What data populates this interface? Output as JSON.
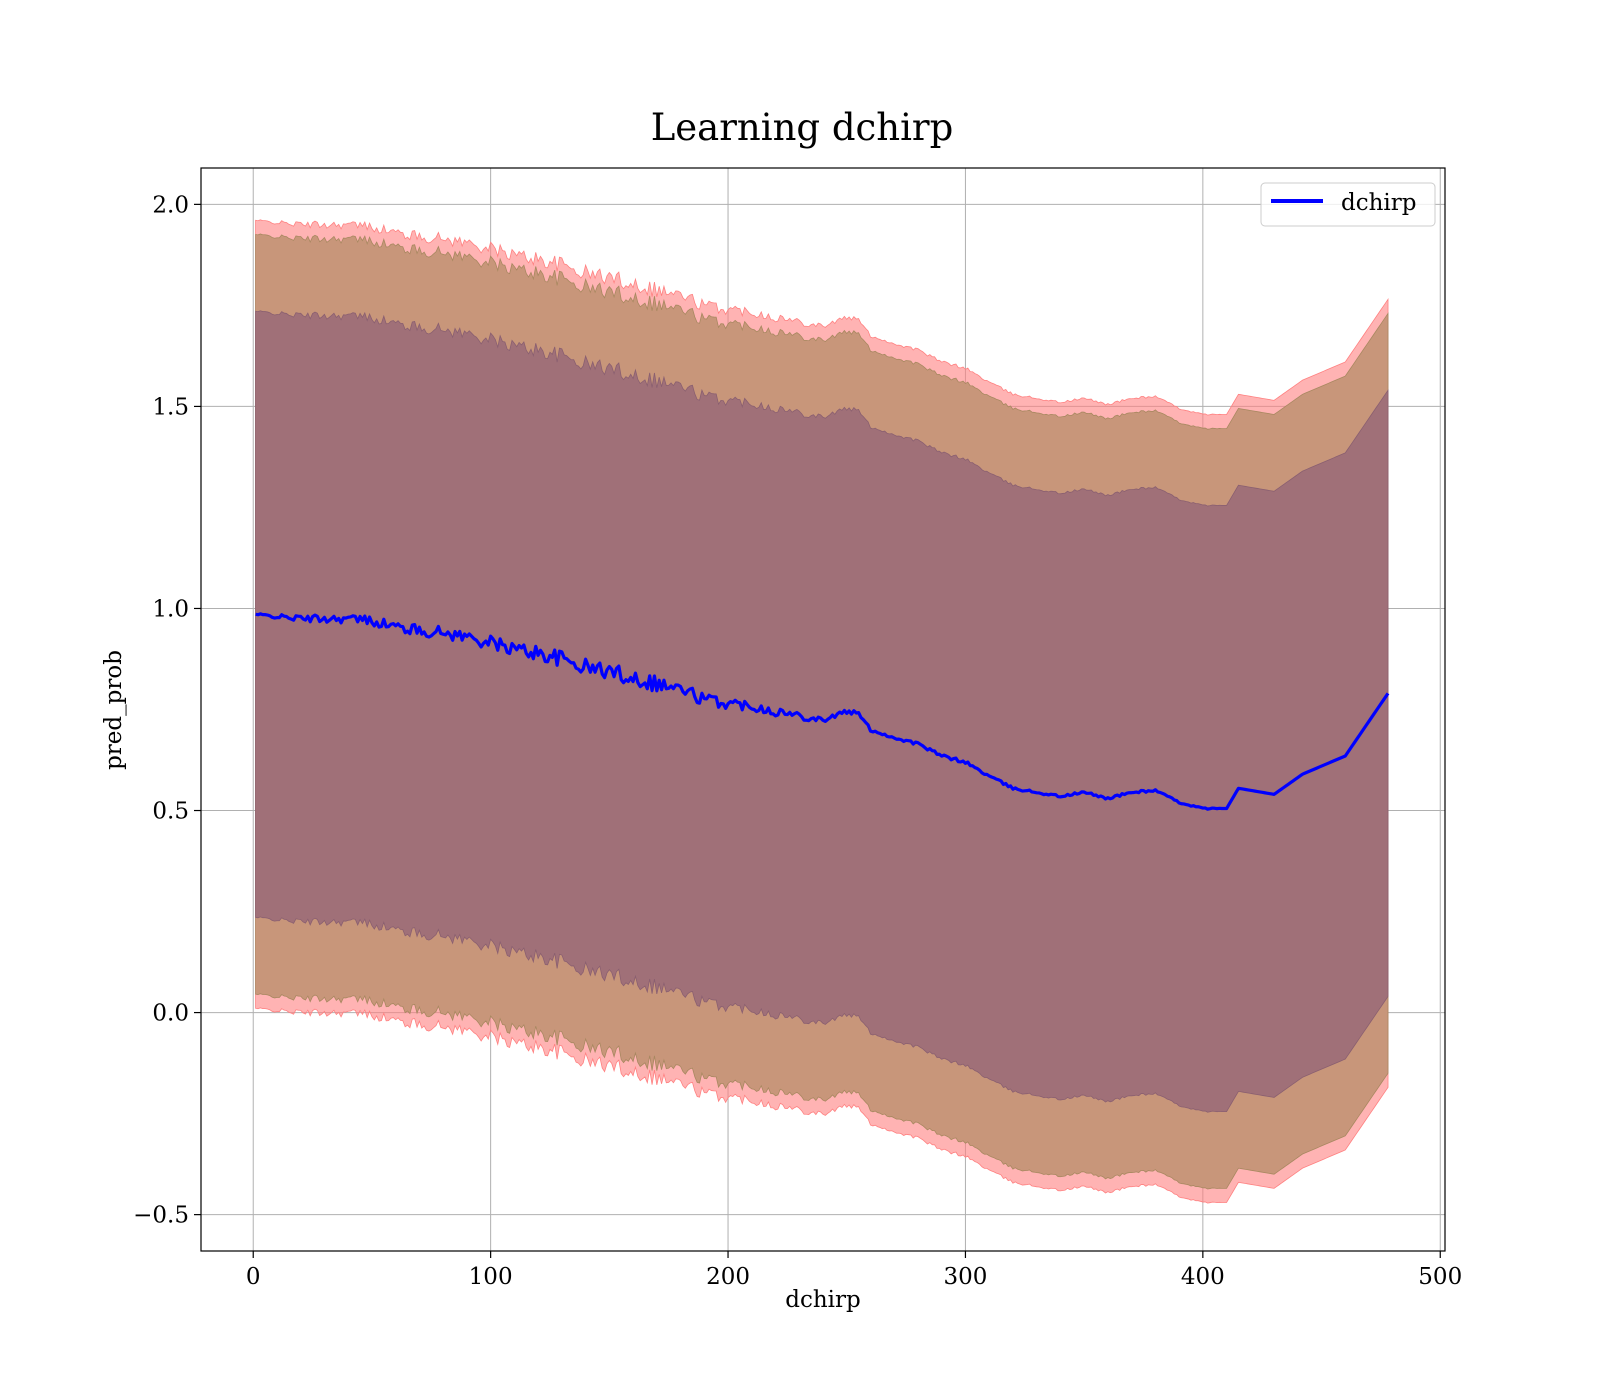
{
  "chart_data": {
    "type": "line",
    "title": "Learning dchirp",
    "xlabel": "dchirp",
    "ylabel": "pred_prob",
    "xlim": [
      -22,
      502
    ],
    "ylim": [
      -0.59,
      2.09
    ],
    "xticks": [
      0,
      100,
      200,
      300,
      400,
      500
    ],
    "yticks": [
      -0.5,
      0.0,
      0.5,
      1.0,
      1.5,
      2.0
    ],
    "xtick_labels": [
      "0",
      "100",
      "200",
      "300",
      "400",
      "500"
    ],
    "ytick_labels": [
      "−0.5",
      "0.0",
      "0.5",
      "1.0",
      "1.5",
      "2.0"
    ],
    "grid": true,
    "legend": {
      "position": "top-right",
      "entries": [
        "dchirp"
      ]
    },
    "series": [
      {
        "name": "dchirp",
        "color": "#0000ff",
        "x": [
          1,
          10,
          20,
          30,
          40,
          50,
          60,
          70,
          80,
          90,
          100,
          110,
          120,
          130,
          140,
          150,
          160,
          170,
          180,
          190,
          200,
          210,
          220,
          230,
          240,
          250,
          255,
          260,
          270,
          280,
          290,
          300,
          310,
          320,
          330,
          340,
          350,
          360,
          370,
          380,
          390,
          400,
          410,
          415,
          430,
          442,
          460,
          478
        ],
        "y": [
          0.985,
          0.98,
          0.975,
          0.975,
          0.975,
          0.97,
          0.955,
          0.945,
          0.94,
          0.93,
          0.915,
          0.9,
          0.89,
          0.875,
          0.855,
          0.845,
          0.83,
          0.815,
          0.8,
          0.775,
          0.765,
          0.76,
          0.745,
          0.735,
          0.725,
          0.745,
          0.74,
          0.7,
          0.68,
          0.665,
          0.635,
          0.62,
          0.585,
          0.555,
          0.545,
          0.535,
          0.545,
          0.53,
          0.545,
          0.55,
          0.52,
          0.505,
          0.505,
          0.555,
          0.54,
          0.59,
          0.635,
          0.79
        ],
        "noise": [
          0.003,
          0.005,
          0.008,
          0.01,
          0.011,
          0.012,
          0.013,
          0.014,
          0.015,
          0.016,
          0.017,
          0.018,
          0.019,
          0.02,
          0.02,
          0.021,
          0.021,
          0.022,
          0.02,
          0.016,
          0.014,
          0.013,
          0.011,
          0.01,
          0.008,
          0.006,
          0.005,
          0.004,
          0.004,
          0.004,
          0.004,
          0.004,
          0.004,
          0.003,
          0.003,
          0.003,
          0.003,
          0.003,
          0.003,
          0.003,
          0.002,
          0.002,
          0,
          0,
          0,
          0,
          0,
          0
        ],
        "band_inner_half_width": 0.75,
        "band_middle_half_width": 0.94,
        "band_outer_half_width": 0.975
      }
    ],
    "colors": {
      "series_line": "#0000ff",
      "band_outer": "#ff8080",
      "band_middle": "#c8967a",
      "band_inner": "#a07078"
    }
  }
}
